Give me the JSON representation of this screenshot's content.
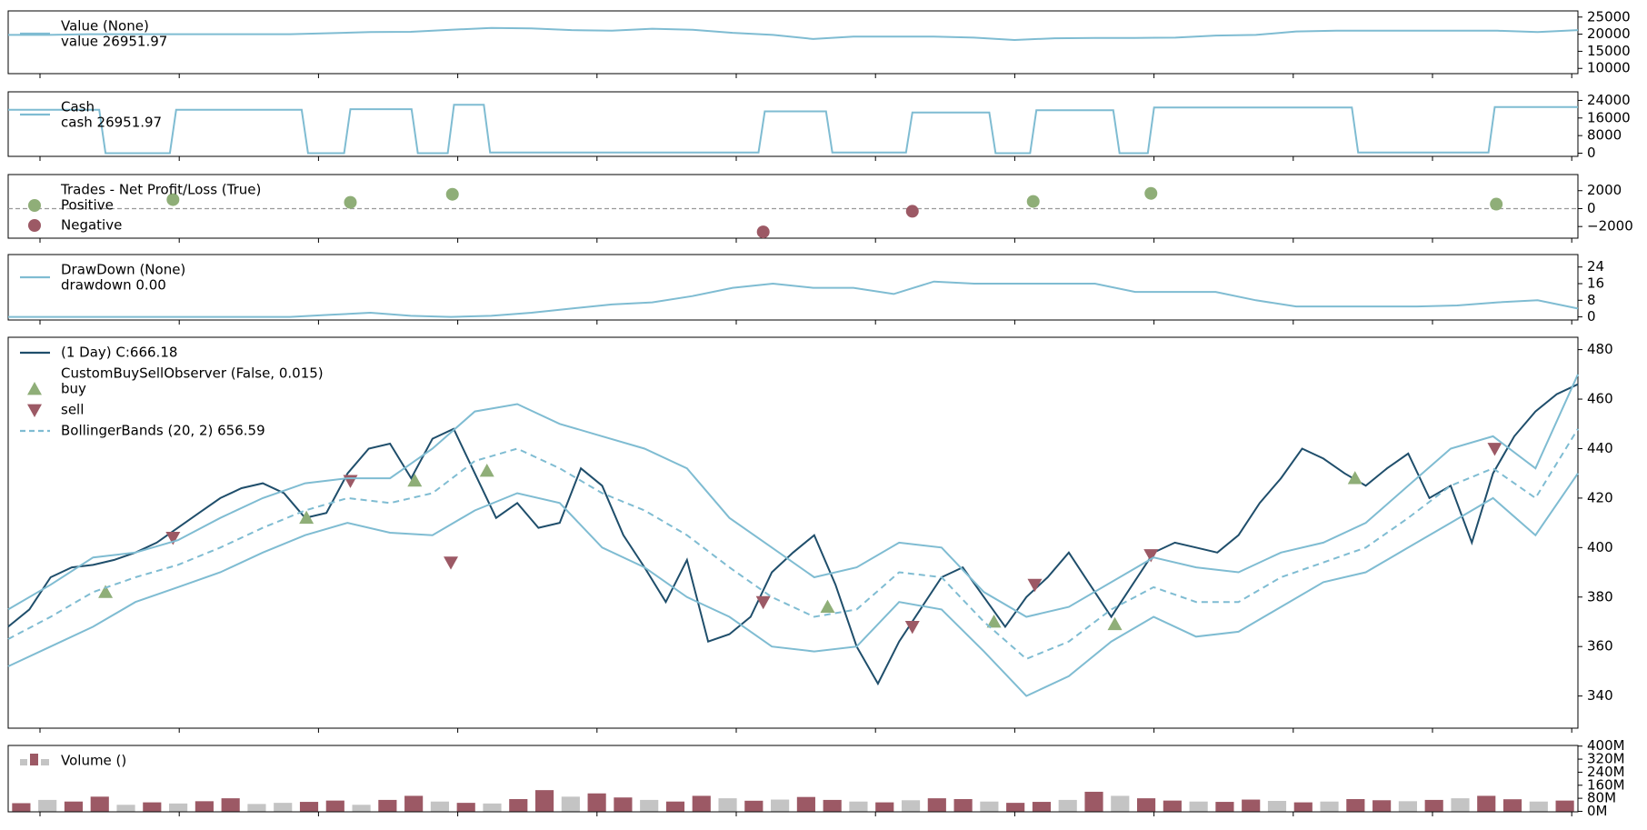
{
  "chart_data": [
    {
      "type": "line",
      "legend_title": "Value (None)",
      "xlim": [
        0,
        100
      ],
      "ylim": [
        8470,
        26800
      ],
      "yticks": [
        10000,
        15000,
        20000,
        25000
      ],
      "series": [
        {
          "name": "value 26951.97",
          "color": "#7fbcd2",
          "values": [
            19800,
            19800,
            20000,
            20000,
            20000,
            20000,
            20000,
            20000,
            20300,
            20600,
            20700,
            21300,
            21800,
            21700,
            21200,
            21000,
            21600,
            21300,
            20400,
            19800,
            18600,
            19300,
            19300,
            19300,
            19000,
            18300,
            18800,
            18900,
            18900,
            19000,
            19600,
            19800,
            20800,
            21000,
            21000,
            21000,
            21000,
            21000,
            20600,
            21200
          ]
        }
      ]
    },
    {
      "type": "line",
      "legend_title": "Cash",
      "xlim": [
        0,
        100
      ],
      "ylim": [
        -1440,
        27900
      ],
      "yticks": [
        0,
        8000,
        16000,
        24000
      ],
      "series": [
        {
          "name": "cash 26951.97",
          "color": "#7fbcd2",
          "x": [
            0,
            5.8,
            6.2,
            10.3,
            10.7,
            18.7,
            19.1,
            21.4,
            21.8,
            25.7,
            26.1,
            28.0,
            28.4,
            30.3,
            30.7,
            47.8,
            48.2,
            52.1,
            52.5,
            57.2,
            57.6,
            62.5,
            62.9,
            65.1,
            65.5,
            70.4,
            70.8,
            72.6,
            73.0,
            85.6,
            86.0,
            94.3,
            94.7,
            100
          ],
          "values": [
            19700,
            19700,
            0,
            0,
            19700,
            19700,
            0,
            0,
            20000,
            20000,
            0,
            0,
            22000,
            22000,
            300,
            300,
            19000,
            19000,
            300,
            300,
            18500,
            18500,
            0,
            0,
            19500,
            19500,
            0,
            0,
            20800,
            20800,
            300,
            300,
            21000,
            21000
          ]
        }
      ]
    },
    {
      "type": "scatter",
      "legend_title": "Trades - Net Profit/Loss (True)",
      "xlim": [
        0,
        100
      ],
      "ylim": [
        -3300,
        3800
      ],
      "yticks": [
        {
          "value": -2000,
          "label": "−2000"
        },
        0,
        2000
      ],
      "reference_line": 0,
      "series": [
        {
          "name": "Positive",
          "color": "#8fae78",
          "marker": "o",
          "x": [
            10.5,
            21.8,
            28.3,
            65.3,
            72.8,
            94.8
          ],
          "values": [
            1000,
            700,
            1600,
            800,
            1700,
            500
          ]
        },
        {
          "name": "Negative",
          "color": "#9c5965",
          "marker": "o",
          "x": [
            48.1,
            57.6
          ],
          "values": [
            -2600,
            -300
          ]
        }
      ]
    },
    {
      "type": "line",
      "legend_title": "DrawDown (None)",
      "xlim": [
        0,
        100
      ],
      "ylim": [
        -1.5,
        30
      ],
      "yticks": [
        0,
        8,
        16,
        24
      ],
      "series": [
        {
          "name": "drawdown 0.00",
          "color": "#7fbcd2",
          "values": [
            0,
            0,
            0,
            0,
            0,
            0,
            0,
            0,
            1,
            2,
            0.5,
            0,
            0.5,
            2,
            4,
            6,
            7,
            10,
            14,
            16,
            14,
            14,
            11,
            17,
            16,
            16,
            16,
            16,
            12,
            12,
            12,
            8,
            5,
            5,
            5,
            5,
            5.5,
            7,
            8,
            4
          ]
        }
      ]
    },
    {
      "type": "line",
      "xlim": [
        0,
        100
      ],
      "ylim": [
        327,
        485
      ],
      "yticks": [
        340,
        360,
        380,
        400,
        420,
        440,
        460,
        480
      ],
      "series": [
        {
          "name": "(1 Day) C:666.18",
          "color": "#1f4e6b",
          "values": [
            368,
            375,
            388,
            392,
            393,
            395,
            398,
            402,
            408,
            414,
            420,
            424,
            426,
            422,
            412,
            414,
            430,
            440,
            442,
            428,
            444,
            448,
            430,
            412,
            418,
            408,
            410,
            432,
            425,
            405,
            392,
            378,
            395,
            362,
            365,
            372,
            390,
            398,
            405,
            385,
            360,
            345,
            362,
            375,
            388,
            392,
            380,
            368,
            380,
            388,
            398,
            385,
            372,
            385,
            398,
            402,
            400,
            398,
            405,
            418,
            428,
            440,
            436,
            430,
            425,
            432,
            438,
            420,
            425,
            402,
            430,
            445,
            455,
            462,
            466
          ]
        },
        {
          "title": "CustomBuySellObserver (False, 0.015)",
          "name": "buy",
          "color": "#8fae78",
          "marker": "^",
          "x": [
            6.2,
            19.0,
            25.9,
            30.5,
            52.2,
            62.8,
            70.5,
            85.8
          ],
          "values": [
            382,
            412,
            427,
            431,
            376,
            370,
            369,
            428
          ]
        },
        {
          "name": "sell",
          "color": "#9c5965",
          "marker": "v",
          "x": [
            10.5,
            21.8,
            28.2,
            48.1,
            57.6,
            65.4,
            72.8,
            94.7
          ],
          "values": [
            404,
            427,
            394,
            378,
            368,
            385,
            397,
            440
          ]
        },
        {
          "name": "BollingerBands (20, 2) 656.59",
          "color": "#7fbcd2",
          "linestyle": "dashed",
          "values": [
            363,
            372,
            382,
            388,
            393,
            400,
            408,
            415,
            420,
            418,
            422,
            435,
            440,
            432,
            422,
            415,
            405,
            392,
            380,
            372,
            375,
            390,
            388,
            370,
            355,
            362,
            375,
            384,
            378,
            378,
            388,
            394,
            400,
            412,
            425,
            432,
            420,
            448
          ],
          "upper": [
            375,
            385,
            396,
            398,
            403,
            412,
            420,
            426,
            428,
            428,
            440,
            455,
            458,
            450,
            445,
            440,
            432,
            412,
            400,
            388,
            392,
            402,
            400,
            382,
            372,
            376,
            386,
            396,
            392,
            390,
            398,
            402,
            410,
            425,
            440,
            445,
            432,
            470
          ],
          "lower": [
            352,
            360,
            368,
            378,
            384,
            390,
            398,
            405,
            410,
            406,
            405,
            415,
            422,
            418,
            400,
            392,
            380,
            372,
            360,
            358,
            360,
            378,
            375,
            358,
            340,
            348,
            362,
            372,
            364,
            366,
            376,
            386,
            390,
            400,
            410,
            420,
            405,
            430
          ]
        }
      ]
    },
    {
      "type": "bar",
      "legend_title": "Volume ()",
      "xlim": [
        0,
        100
      ],
      "ylim": [
        -3,
        404
      ],
      "yticks": [
        {
          "value": 0,
          "label": "0M"
        },
        {
          "value": 80,
          "label": "80M"
        },
        {
          "value": 160,
          "label": "160M"
        },
        {
          "value": 240,
          "label": "240M"
        },
        {
          "value": 320,
          "label": "320M"
        },
        {
          "value": 400,
          "label": "400M"
        }
      ],
      "up_color": "#9c5965",
      "down_color": "#c4c4c4",
      "values": [
        50,
        70,
        60,
        90,
        40,
        55,
        48,
        62,
        80,
        45,
        52,
        58,
        66,
        40,
        70,
        95,
        60,
        52,
        48,
        75,
        130,
        90,
        110,
        85,
        70,
        60,
        95,
        80,
        65,
        72,
        88,
        70,
        60,
        55,
        68,
        80,
        75,
        60,
        52,
        58,
        70,
        120,
        95,
        80,
        66,
        60,
        58,
        72,
        64,
        55,
        60,
        75,
        68,
        62,
        70,
        80,
        95,
        74,
        60,
        66
      ],
      "rising": [
        true,
        false,
        true,
        true,
        false,
        true,
        false,
        true,
        true,
        false,
        false,
        true,
        true,
        false,
        true,
        true,
        false,
        true,
        false,
        true,
        true,
        false,
        true,
        true,
        false,
        true,
        true,
        false,
        true,
        false,
        true,
        true,
        false,
        true,
        false,
        true,
        true,
        false,
        true,
        true,
        false,
        true,
        false,
        true,
        true,
        false,
        true,
        true,
        false,
        true,
        false,
        true,
        true,
        false,
        true,
        false,
        true,
        true,
        false,
        true
      ]
    }
  ]
}
